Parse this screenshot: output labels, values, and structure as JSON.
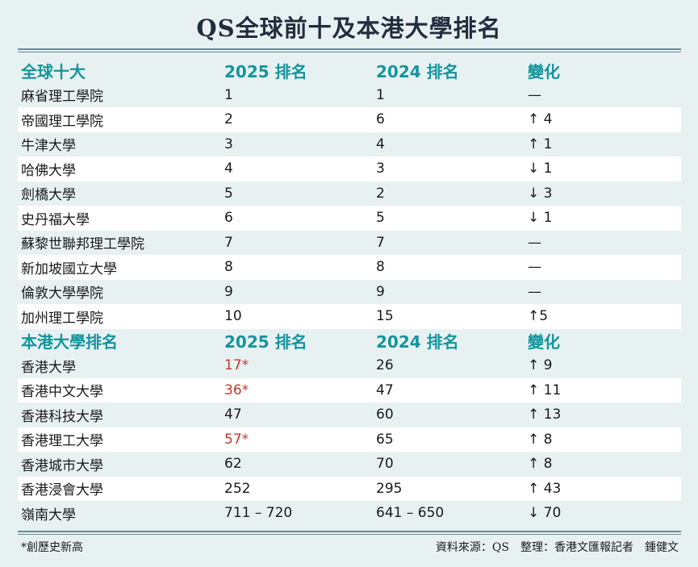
{
  "title": "QS全球前十及本港大學排名",
  "sections": [
    {
      "header": {
        "name": "全球十大",
        "y2025": "2025 排名",
        "y2024": "2024 排名",
        "change": "變化"
      },
      "rows": [
        {
          "name": "麻省理工學院",
          "r2025": "1",
          "r2024": "1",
          "change": "—"
        },
        {
          "name": "帝國理工學院",
          "r2025": "2",
          "r2024": "6",
          "change": "↑ 4"
        },
        {
          "name": "牛津大學",
          "r2025": "3",
          "r2024": "4",
          "change": "↑ 1"
        },
        {
          "name": "哈佛大學",
          "r2025": "4",
          "r2024": "3",
          "change": "↓ 1"
        },
        {
          "name": "劍橋大學",
          "r2025": "5",
          "r2024": "2",
          "change": "↓ 3"
        },
        {
          "name": "史丹福大學",
          "r2025": "6",
          "r2024": "5",
          "change": "↓ 1"
        },
        {
          "name": "蘇黎世聯邦理工學院",
          "r2025": "7",
          "r2024": "7",
          "change": "—"
        },
        {
          "name": "新加坡國立大學",
          "r2025": "8",
          "r2024": "8",
          "change": "—"
        },
        {
          "name": "倫敦大學學院",
          "r2025": "9",
          "r2024": "9",
          "change": "—"
        },
        {
          "name": "加州理工學院",
          "r2025": "10",
          "r2024": "15",
          "change": "↑5"
        }
      ]
    },
    {
      "header": {
        "name": "本港大學排名",
        "y2025": "2025 排名",
        "y2024": "2024 排名",
        "change": "變化"
      },
      "rows": [
        {
          "name": "香港大學",
          "r2025": "17*",
          "r2024": "26",
          "change": "↑ 9",
          "highlight": true
        },
        {
          "name": "香港中文大學",
          "r2025": "36*",
          "r2024": "47",
          "change": "↑ 11",
          "highlight": true
        },
        {
          "name": "香港科技大學",
          "r2025": "47",
          "r2024": "60",
          "change": "↑ 13"
        },
        {
          "name": "香港理工大學",
          "r2025": "57*",
          "r2024": "65",
          "change": "↑ 8",
          "highlight": true
        },
        {
          "name": "香港城市大學",
          "r2025": "62",
          "r2024": "70",
          "change": "↑ 8"
        },
        {
          "name": "香港浸會大學",
          "r2025": "252",
          "r2024": "295",
          "change": "↑ 43"
        },
        {
          "name": "嶺南大學",
          "r2025": "711 – 720",
          "r2024": "641 – 650",
          "change": "↓ 70"
        }
      ]
    }
  ],
  "footnote": "*創歷史新高",
  "credit": "資料來源：QS　整理：香港文匯報記者　鍾健文",
  "colors": {
    "header": "#15959e",
    "highlight": "#c0392b",
    "background": "#e8f1f2"
  }
}
